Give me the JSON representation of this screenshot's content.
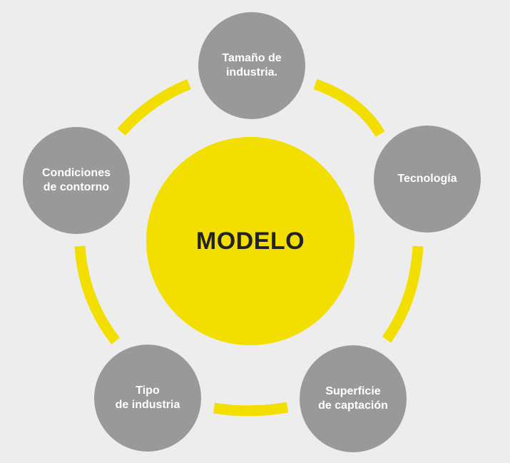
{
  "diagram": {
    "center_label": "MODELO",
    "nodes": [
      {
        "label": "Tamaño de\nindustria."
      },
      {
        "label": "Tecnología"
      },
      {
        "label": "Superficie\nde captación"
      },
      {
        "label": "Tipo\nde industria"
      },
      {
        "label": "Condiciones\nde contorno"
      }
    ]
  },
  "colors": {
    "background": "#ededed",
    "accent_yellow": "#f2df00",
    "node_gray": "#999999",
    "node_text": "#ffffff",
    "center_text": "#222222"
  }
}
